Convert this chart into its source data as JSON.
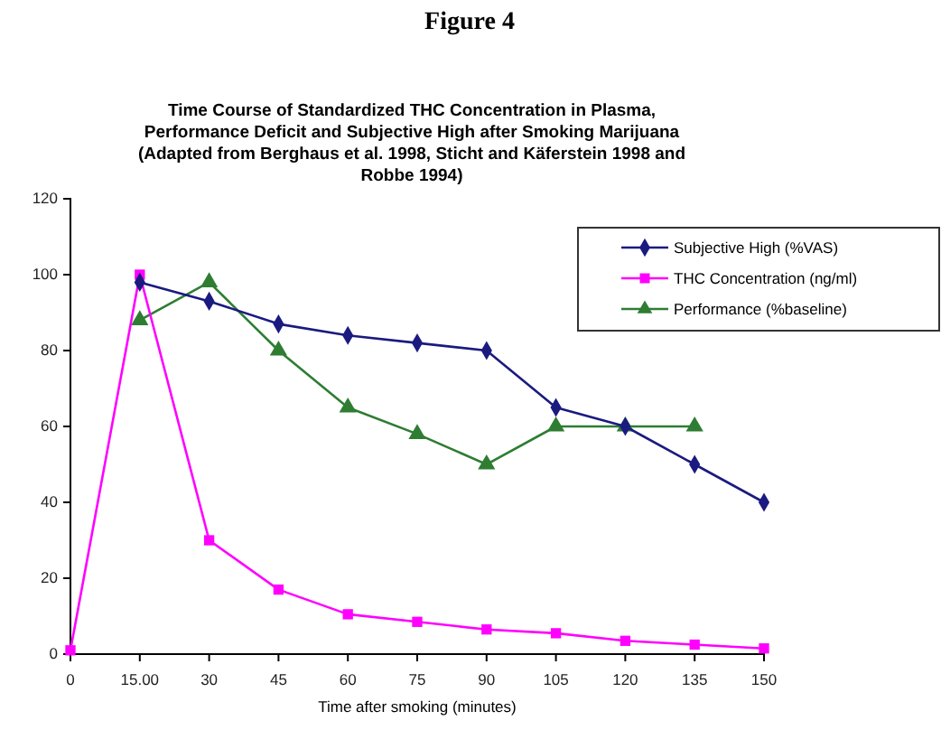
{
  "chart_data": {
    "type": "line",
    "title": "Time Course of Standardized THC Concentration in Plasma,\nPerformance Deficit and Subjective High after Smoking Marijuana\n(Adapted from Berghaus et al. 1998, Sticht and Käferstein 1998 and\nRobbe 1994)",
    "annotations": [
      "Figure 4"
    ],
    "xlabel": "Time after smoking (minutes)",
    "categories": [
      "0",
      "15.00",
      "30",
      "45",
      "60",
      "75",
      "90",
      "105",
      "120",
      "135",
      "150"
    ],
    "ylim": [
      0,
      120
    ],
    "yticks": [
      0,
      20,
      40,
      60,
      80,
      100,
      120
    ],
    "grid": false,
    "legend": "top right",
    "line_style": "solid",
    "series": [
      {
        "name": "Subjective High (%VAS)",
        "color": "#1a1a80",
        "marker": "diamond",
        "values": [
          null,
          98,
          93,
          87,
          84,
          82,
          80,
          65,
          60,
          50,
          40
        ]
      },
      {
        "name": "THC Concentration (ng/ml)",
        "color": "#ff00ff",
        "marker": "square",
        "values": [
          1,
          100,
          30,
          17,
          10.5,
          8.5,
          6.5,
          5.5,
          3.5,
          2.5,
          1.5
        ]
      },
      {
        "name": "Performance (%baseline)",
        "color": "#2e7d32",
        "marker": "triangle",
        "values": [
          null,
          88,
          98,
          80,
          65,
          58,
          50,
          60,
          60,
          60,
          null
        ]
      }
    ]
  }
}
